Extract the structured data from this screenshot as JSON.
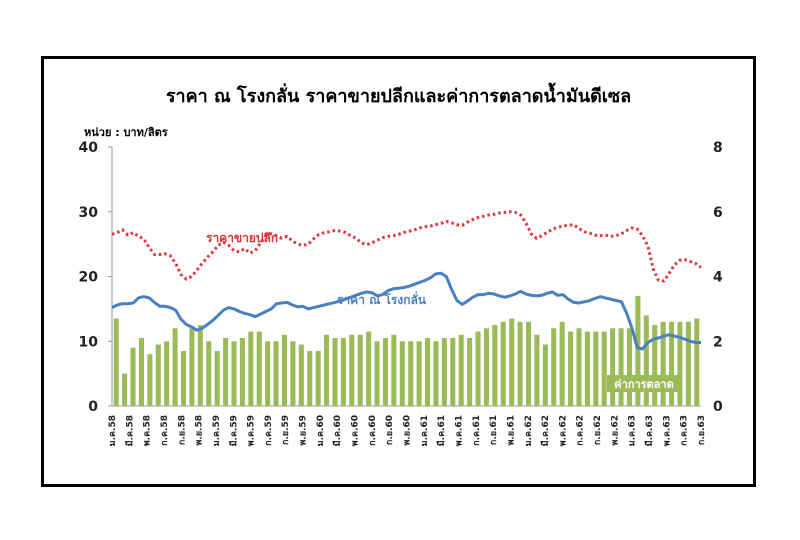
{
  "title": "ราคา ณ โรงกลั่น ราคาขายปลีกและค่าการตลาดน้ำมันดีเซล",
  "unit_label": "หน่วย : บาท/ลิตร",
  "chart_data": {
    "type": "bar+line",
    "x_labels": [
      "ม.ค.58",
      "มี.ค.58",
      "พ.ค.58",
      "ก.ค.58",
      "ก.ย.58",
      "พ.ย.58",
      "ม.ค.59",
      "มี.ค.59",
      "พ.ค.59",
      "ก.ค.59",
      "ก.ย.59",
      "พ.ย.59",
      "ม.ค.60",
      "มี.ค.60",
      "พ.ค.60",
      "ก.ค.60",
      "ก.ย.60",
      "พ.ย.60",
      "ม.ค.61",
      "มี.ค.61",
      "พ.ค.61",
      "ก.ค.61",
      "ก.ย.61",
      "พ.ย.61",
      "ม.ค.62",
      "มี.ค.62",
      "พ.ค.62",
      "ก.ค.62",
      "ก.ย.62",
      "พ.ย.62",
      "ม.ค.63",
      "มี.ค.63",
      "พ.ค.63",
      "ก.ค.63",
      "ก.ย.63"
    ],
    "y_left": {
      "range": [
        0,
        40
      ],
      "ticks": [
        0,
        10,
        20,
        30,
        40
      ]
    },
    "y_right": {
      "range": [
        0,
        8
      ],
      "ticks": [
        0,
        2,
        4,
        6,
        8
      ]
    },
    "series": [
      {
        "name": "ราคาขายปลีก",
        "type": "line",
        "style": "dotted",
        "axis": "left",
        "color": "#e0343a",
        "values": [
          26.5,
          26.8,
          27.2,
          26.4,
          26.8,
          26.2,
          25.8,
          24.5,
          23.4,
          23.4,
          23.5,
          23.2,
          22.0,
          20.3,
          19.6,
          20.0,
          21.0,
          22.0,
          23.0,
          23.8,
          24.8,
          25.3,
          24.8,
          24.0,
          23.8,
          24.3,
          23.6,
          24.0,
          25.2,
          26.3,
          26.6,
          26.3,
          25.9,
          26.2,
          25.5,
          25.0,
          24.8,
          25.0,
          25.8,
          26.5,
          26.8,
          26.9,
          27.1,
          27.0,
          26.8,
          26.3,
          25.9,
          25.2,
          24.9,
          25.2,
          25.6,
          26.0,
          26.2,
          26.3,
          26.5,
          26.8,
          27.0,
          27.2,
          27.5,
          27.7,
          27.8,
          28.0,
          28.2,
          28.5,
          28.3,
          28.0,
          27.9,
          28.4,
          28.8,
          29.1,
          29.3,
          29.5,
          29.6,
          29.8,
          29.9,
          30.0,
          29.9,
          29.5,
          28.3,
          26.6,
          25.9,
          26.3,
          26.8,
          27.3,
          27.6,
          27.8,
          27.9,
          28.0,
          27.4,
          26.9,
          26.7,
          26.4,
          26.3,
          26.4,
          26.2,
          26.3,
          26.6,
          27.1,
          27.5,
          27.3,
          26.3,
          24.7,
          21.2,
          19.4,
          19.3,
          20.5,
          21.8,
          22.5,
          22.6,
          22.3,
          22.0,
          21.4
        ]
      },
      {
        "name": "ราคา ณ โรงกลั่น",
        "type": "line",
        "style": "solid",
        "axis": "left",
        "color": "#4a7fc1",
        "values": [
          15.2,
          15.6,
          15.8,
          15.8,
          15.9,
          16.7,
          16.9,
          16.7,
          16.0,
          15.4,
          15.4,
          15.2,
          14.8,
          13.4,
          12.6,
          12.2,
          11.7,
          12.0,
          12.6,
          13.2,
          14.0,
          14.8,
          15.2,
          15.0,
          14.6,
          14.3,
          14.1,
          13.8,
          14.2,
          14.6,
          15.0,
          15.8,
          15.9,
          16.0,
          15.6,
          15.3,
          15.4,
          15.0,
          15.2,
          15.4,
          15.6,
          15.8,
          16.0,
          16.2,
          16.5,
          16.8,
          17.1,
          17.4,
          17.6,
          17.5,
          17.0,
          17.2,
          17.8,
          18.1,
          18.2,
          18.3,
          18.5,
          18.8,
          19.1,
          19.4,
          19.8,
          20.4,
          20.5,
          20.0,
          18.0,
          16.3,
          15.7,
          16.2,
          16.8,
          17.2,
          17.2,
          17.4,
          17.3,
          17.0,
          16.8,
          17.0,
          17.3,
          17.7,
          17.3,
          17.1,
          17.0,
          17.1,
          17.4,
          17.6,
          17.1,
          17.2,
          16.5,
          16.0,
          15.9,
          16.1,
          16.3,
          16.6,
          16.9,
          16.7,
          16.5,
          16.3,
          16.1,
          14.3,
          12.0,
          9.0,
          8.8,
          9.8,
          10.3,
          10.5,
          10.8,
          11.0,
          10.8,
          10.6,
          10.3,
          10.0,
          9.8,
          9.8
        ]
      },
      {
        "name": "ค่าการตลาด",
        "type": "bar",
        "axis": "right",
        "color": "#9bbb59",
        "values": [
          2.7,
          1.0,
          1.8,
          2.1,
          1.6,
          1.9,
          2.0,
          2.4,
          1.7,
          2.4,
          2.5,
          2.0,
          1.7,
          2.1,
          2.0,
          2.1,
          2.3,
          2.3,
          2.0,
          2.0,
          2.2,
          2.0,
          1.9,
          1.7,
          1.7,
          2.2,
          2.1,
          2.1,
          2.2,
          2.2,
          2.3,
          2.0,
          2.1,
          2.2,
          2.0,
          2.0,
          2.0,
          2.1,
          2.0,
          2.1,
          2.1,
          2.2,
          2.1,
          2.3,
          2.4,
          2.5,
          2.6,
          2.7,
          2.6,
          2.6,
          2.2,
          1.9,
          2.4,
          2.6,
          2.3,
          2.4,
          2.3,
          2.3,
          2.3,
          2.4,
          2.4,
          2.4,
          3.4,
          2.8,
          2.5,
          2.6,
          2.6,
          2.6,
          2.6,
          2.7
        ]
      }
    ]
  }
}
